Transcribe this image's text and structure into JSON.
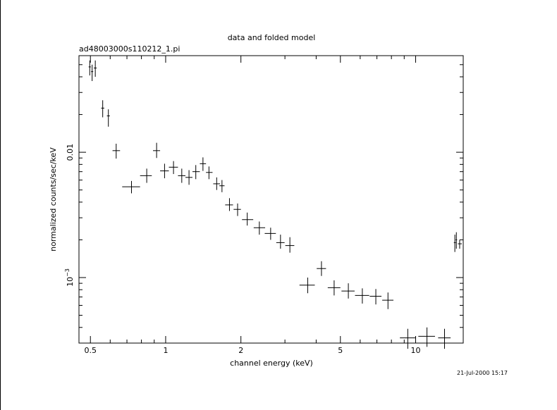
{
  "page": {
    "title": "data and folded model",
    "subtitle": "ad48003000s110212_1.pi",
    "timestamp": "21-Jul-2000 15:17"
  },
  "chart_data": {
    "type": "scatter",
    "title": "data and folded model",
    "subtitle": "ad48003000s110212_1.pi",
    "xlabel": "channel energy (keV)",
    "ylabel": "normalized counts/sec/keV",
    "xscale": "log",
    "yscale": "log",
    "xlim": [
      0.45,
      15.5
    ],
    "ylim": [
      0.0003,
      0.059
    ],
    "x_ticks": [
      {
        "value": 0.5,
        "label": "0.5"
      },
      {
        "value": 1,
        "label": "1"
      },
      {
        "value": 2,
        "label": "2"
      },
      {
        "value": 5,
        "label": "5"
      },
      {
        "value": 10,
        "label": "10"
      }
    ],
    "y_ticks": [
      {
        "value": 0.01,
        "label": "0.01"
      },
      {
        "value": 0.001,
        "label": "10",
        "exponent": "−3"
      }
    ],
    "grid": false,
    "marker": "error-cross",
    "series": [
      {
        "points": [
          {
            "x": 0.497,
            "xlo": 0.492,
            "xhi": 0.502,
            "y": 0.048,
            "ylo": 0.041,
            "yhi": 0.054
          },
          {
            "x": 0.508,
            "xlo": 0.503,
            "xhi": 0.513,
            "y": 0.044,
            "ylo": 0.037,
            "yhi": 0.05
          },
          {
            "x": 0.523,
            "xlo": 0.516,
            "xhi": 0.53,
            "y": 0.047,
            "ylo": 0.04,
            "yhi": 0.054
          },
          {
            "x": 0.56,
            "xlo": 0.552,
            "xhi": 0.568,
            "y": 0.0225,
            "ylo": 0.019,
            "yhi": 0.026
          },
          {
            "x": 0.59,
            "xlo": 0.582,
            "xhi": 0.598,
            "y": 0.0195,
            "ylo": 0.016,
            "yhi": 0.022
          },
          {
            "x": 0.634,
            "xlo": 0.613,
            "xhi": 0.657,
            "y": 0.0103,
            "ylo": 0.0089,
            "yhi": 0.0117
          },
          {
            "x": 0.73,
            "xlo": 0.67,
            "xhi": 0.79,
            "y": 0.0053,
            "ylo": 0.0047,
            "yhi": 0.0059
          },
          {
            "x": 0.84,
            "xlo": 0.79,
            "xhi": 0.88,
            "y": 0.0065,
            "ylo": 0.0057,
            "yhi": 0.0074
          },
          {
            "x": 0.92,
            "xlo": 0.89,
            "xhi": 0.95,
            "y": 0.0103,
            "ylo": 0.009,
            "yhi": 0.0119
          },
          {
            "x": 0.99,
            "xlo": 0.95,
            "xhi": 1.03,
            "y": 0.0071,
            "ylo": 0.0062,
            "yhi": 0.0081
          },
          {
            "x": 1.075,
            "xlo": 1.03,
            "xhi": 1.12,
            "y": 0.0076,
            "ylo": 0.0067,
            "yhi": 0.0085
          },
          {
            "x": 1.16,
            "xlo": 1.12,
            "xhi": 1.2,
            "y": 0.0065,
            "ylo": 0.0057,
            "yhi": 0.0074
          },
          {
            "x": 1.24,
            "xlo": 1.2,
            "xhi": 1.28,
            "y": 0.0063,
            "ylo": 0.0055,
            "yhi": 0.0072
          },
          {
            "x": 1.32,
            "xlo": 1.28,
            "xhi": 1.37,
            "y": 0.007,
            "ylo": 0.0061,
            "yhi": 0.0079
          },
          {
            "x": 1.41,
            "xlo": 1.37,
            "xhi": 1.45,
            "y": 0.0081,
            "ylo": 0.0071,
            "yhi": 0.0091
          },
          {
            "x": 1.49,
            "xlo": 1.45,
            "xhi": 1.54,
            "y": 0.0069,
            "ylo": 0.0061,
            "yhi": 0.0077
          },
          {
            "x": 1.6,
            "xlo": 1.55,
            "xhi": 1.65,
            "y": 0.0056,
            "ylo": 0.005,
            "yhi": 0.0063
          },
          {
            "x": 1.68,
            "xlo": 1.64,
            "xhi": 1.72,
            "y": 0.0054,
            "ylo": 0.0048,
            "yhi": 0.006
          },
          {
            "x": 1.8,
            "xlo": 1.73,
            "xhi": 1.86,
            "y": 0.0038,
            "ylo": 0.0034,
            "yhi": 0.0043
          },
          {
            "x": 1.94,
            "xlo": 1.87,
            "xhi": 2.0,
            "y": 0.0035,
            "ylo": 0.0031,
            "yhi": 0.0039
          },
          {
            "x": 2.12,
            "xlo": 2.02,
            "xhi": 2.24,
            "y": 0.0029,
            "ylo": 0.0026,
            "yhi": 0.0033
          },
          {
            "x": 2.37,
            "xlo": 2.25,
            "xhi": 2.5,
            "y": 0.0025,
            "ylo": 0.0022,
            "yhi": 0.0028
          },
          {
            "x": 2.63,
            "xlo": 2.49,
            "xhi": 2.76,
            "y": 0.00225,
            "ylo": 0.002,
            "yhi": 0.0025
          },
          {
            "x": 2.88,
            "xlo": 2.77,
            "xhi": 2.99,
            "y": 0.0019,
            "ylo": 0.0017,
            "yhi": 0.0022
          },
          {
            "x": 3.14,
            "xlo": 3.01,
            "xhi": 3.27,
            "y": 0.0018,
            "ylo": 0.00158,
            "yhi": 0.0021
          },
          {
            "x": 3.7,
            "xlo": 3.43,
            "xhi": 3.95,
            "y": 0.00087,
            "ylo": 0.00075,
            "yhi": 0.001
          },
          {
            "x": 4.2,
            "xlo": 4.02,
            "xhi": 4.38,
            "y": 0.00118,
            "ylo": 0.00103,
            "yhi": 0.00135
          },
          {
            "x": 4.72,
            "xlo": 4.45,
            "xhi": 5.0,
            "y": 0.00083,
            "ylo": 0.00072,
            "yhi": 0.00095
          },
          {
            "x": 5.38,
            "xlo": 5.05,
            "xhi": 5.7,
            "y": 0.00078,
            "ylo": 0.00068,
            "yhi": 0.0009
          },
          {
            "x": 6.12,
            "xlo": 5.72,
            "xhi": 6.52,
            "y": 0.00072,
            "ylo": 0.00062,
            "yhi": 0.00082
          },
          {
            "x": 6.93,
            "xlo": 6.55,
            "xhi": 7.3,
            "y": 0.00071,
            "ylo": 0.00061,
            "yhi": 0.00081
          },
          {
            "x": 7.75,
            "xlo": 7.35,
            "xhi": 8.15,
            "y": 0.00066,
            "ylo": 0.00056,
            "yhi": 0.00076
          },
          {
            "x": 9.3,
            "xlo": 8.65,
            "xhi": 10.0,
            "y": 0.00033,
            "ylo": 0.00027,
            "yhi": 0.00039
          },
          {
            "x": 11.1,
            "xlo": 10.25,
            "xhi": 11.95,
            "y": 0.00034,
            "ylo": 0.00028,
            "yhi": 0.0004
          },
          {
            "x": 13.05,
            "xlo": 12.3,
            "xhi": 13.8,
            "y": 0.00033,
            "ylo": 0.00027,
            "yhi": 0.00039
          },
          {
            "x": 14.35,
            "xlo": 14.22,
            "xhi": 14.48,
            "y": 0.0019,
            "ylo": 0.0016,
            "yhi": 0.0022
          },
          {
            "x": 14.55,
            "xlo": 14.45,
            "xhi": 14.65,
            "y": 0.002,
            "ylo": 0.0017,
            "yhi": 0.0023
          },
          {
            "x": 15.0,
            "xlo": 14.75,
            "xhi": 15.3,
            "y": 0.00186,
            "ylo": 0.0017,
            "yhi": 0.002
          }
        ]
      }
    ]
  }
}
